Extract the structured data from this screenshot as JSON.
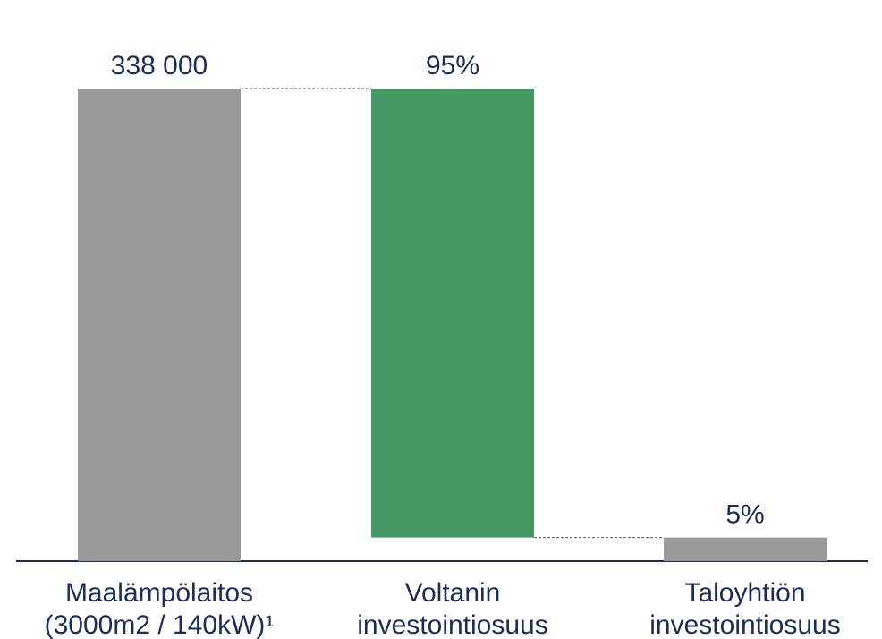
{
  "chart_data": {
    "type": "waterfall",
    "categories": [
      [
        "Maalämpölaitos",
        "(3000m2 / 140kW)¹"
      ],
      [
        "Voltanin",
        "investointiosuus"
      ],
      [
        "Taloyhtiön",
        "investointiosuus"
      ]
    ],
    "values": [
      338000,
      95,
      5
    ],
    "value_labels": [
      "338 000",
      "95%",
      "5%"
    ],
    "colors": [
      "#999999",
      "#439864",
      "#999999"
    ]
  }
}
